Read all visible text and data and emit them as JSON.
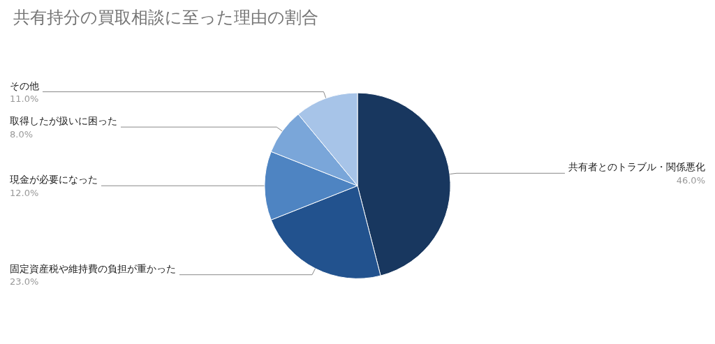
{
  "chart_data": {
    "type": "pie",
    "title": "共有持分の買取相談に至った理由の割合",
    "categories": [
      "共有者とのトラブル・関係悪化",
      "固定資産税や維持費の負担が重かった",
      "現金が必要になった",
      "取得したが扱いに困った",
      "その他"
    ],
    "values": [
      46,
      23,
      12,
      8,
      11
    ],
    "value_labels": [
      "46.0%",
      "23.0%",
      "12.0%",
      "8.0%",
      "11.0%"
    ],
    "colors": [
      "#18375f",
      "#22528e",
      "#4e84c2",
      "#7aa6d9",
      "#a7c4e8"
    ],
    "legend": false
  }
}
